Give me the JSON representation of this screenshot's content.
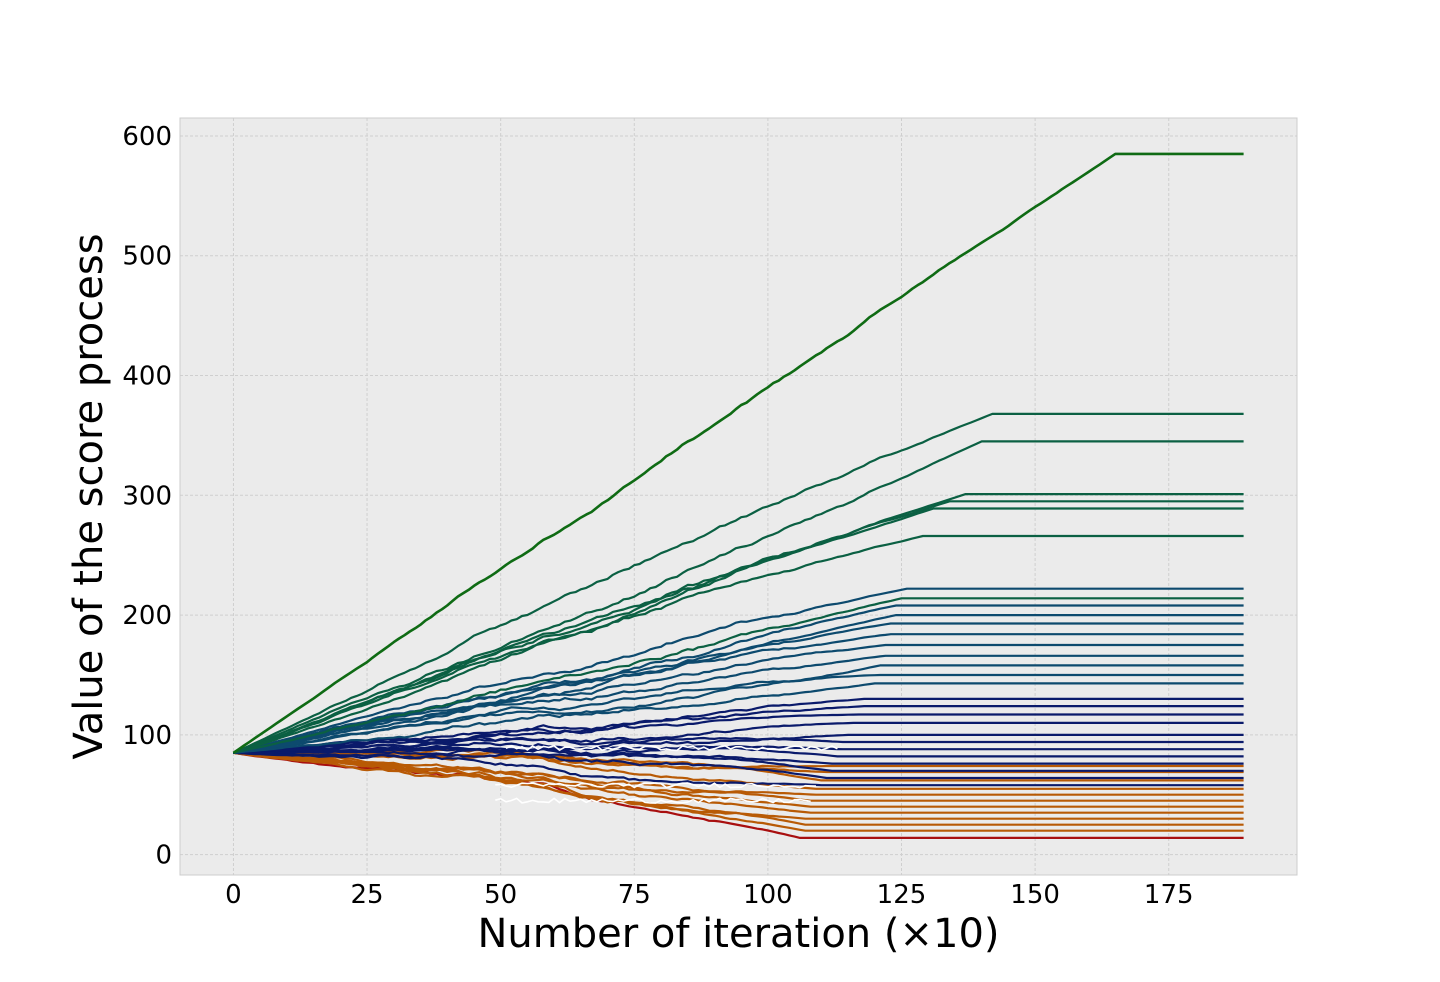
{
  "chart_data": {
    "type": "line",
    "xlabel": "Number of iteration (×10)",
    "ylabel": "Value of the score process",
    "xlim": [
      -10,
      199
    ],
    "ylim": [
      -17,
      615
    ],
    "xticks": [
      0,
      25,
      50,
      75,
      100,
      125,
      150,
      175
    ],
    "yticks": [
      0,
      100,
      200,
      300,
      400,
      500,
      600
    ],
    "grid": true,
    "legend": "none",
    "colors": {
      "background": "#ebebeb",
      "grid": "#cfcfcf",
      "frame": "#cccccc",
      "top_series": "#0f6b14",
      "high_series": "#0b6043",
      "upper_mid_series": "#0d4a6e",
      "mid_series": "#0a1a6b",
      "lower_series": "#b85a05",
      "lowest_series": "#a80f0f",
      "highlight": "#ffffff"
    },
    "start_value": 85,
    "series_summary": [
      {
        "group": "top",
        "end_iteration": 165,
        "final_value": 585
      },
      {
        "group": "high",
        "end_iteration": 142,
        "final_value": 368
      },
      {
        "group": "high",
        "end_iteration": 140,
        "final_value": 345
      },
      {
        "group": "high",
        "end_iteration": 137,
        "final_value": 301
      },
      {
        "group": "high",
        "end_iteration": 134,
        "final_value": 295
      },
      {
        "group": "high",
        "end_iteration": 131,
        "final_value": 289
      },
      {
        "group": "high",
        "end_iteration": 129,
        "final_value": 266
      },
      {
        "group": "upper_mid",
        "end_iteration": 126,
        "final_value": 222
      },
      {
        "group": "high",
        "end_iteration": 125,
        "final_value": 214
      },
      {
        "group": "upper_mid",
        "end_iteration": 124,
        "final_value": 208
      },
      {
        "group": "upper_mid",
        "end_iteration": 124,
        "final_value": 200
      },
      {
        "group": "upper_mid",
        "end_iteration": 123,
        "final_value": 193
      },
      {
        "group": "upper_mid",
        "end_iteration": 123,
        "final_value": 184
      },
      {
        "group": "upper_mid",
        "end_iteration": 122,
        "final_value": 175
      },
      {
        "group": "upper_mid",
        "end_iteration": 122,
        "final_value": 166
      },
      {
        "group": "upper_mid",
        "end_iteration": 121,
        "final_value": 158
      },
      {
        "group": "upper_mid",
        "end_iteration": 121,
        "final_value": 150
      },
      {
        "group": "upper_mid",
        "end_iteration": 120,
        "final_value": 143
      },
      {
        "group": "mid",
        "end_iteration": 118,
        "final_value": 130
      },
      {
        "group": "mid",
        "end_iteration": 118,
        "final_value": 124
      },
      {
        "group": "mid",
        "end_iteration": 117,
        "final_value": 117
      },
      {
        "group": "mid",
        "end_iteration": 116,
        "final_value": 110
      },
      {
        "group": "mid",
        "end_iteration": 115,
        "final_value": 100
      },
      {
        "group": "mid",
        "end_iteration": 114,
        "final_value": 94
      },
      {
        "group": "mid",
        "end_iteration": 114,
        "final_value": 88
      },
      {
        "group": "mid",
        "end_iteration": 113,
        "final_value": 82
      },
      {
        "group": "mid",
        "end_iteration": 112,
        "final_value": 76
      },
      {
        "group": "mid",
        "end_iteration": 112,
        "final_value": 70
      },
      {
        "group": "mid",
        "end_iteration": 111,
        "final_value": 64
      },
      {
        "group": "mid",
        "end_iteration": 110,
        "final_value": 58
      },
      {
        "group": "lower",
        "end_iteration": 112,
        "final_value": 74
      },
      {
        "group": "lower",
        "end_iteration": 111,
        "final_value": 69
      },
      {
        "group": "lower",
        "end_iteration": 110,
        "final_value": 62
      },
      {
        "group": "lower",
        "end_iteration": 109,
        "final_value": 55
      },
      {
        "group": "lower",
        "end_iteration": 109,
        "final_value": 50
      },
      {
        "group": "lower",
        "end_iteration": 108,
        "final_value": 45
      },
      {
        "group": "lower",
        "end_iteration": 108,
        "final_value": 40
      },
      {
        "group": "lower",
        "end_iteration": 108,
        "final_value": 35
      },
      {
        "group": "lower",
        "end_iteration": 107,
        "final_value": 30
      },
      {
        "group": "lower",
        "end_iteration": 107,
        "final_value": 25
      },
      {
        "group": "lower",
        "end_iteration": 107,
        "final_value": 20
      },
      {
        "group": "lowest",
        "end_iteration": 106,
        "final_value": 14
      }
    ],
    "x_end": 189
  }
}
